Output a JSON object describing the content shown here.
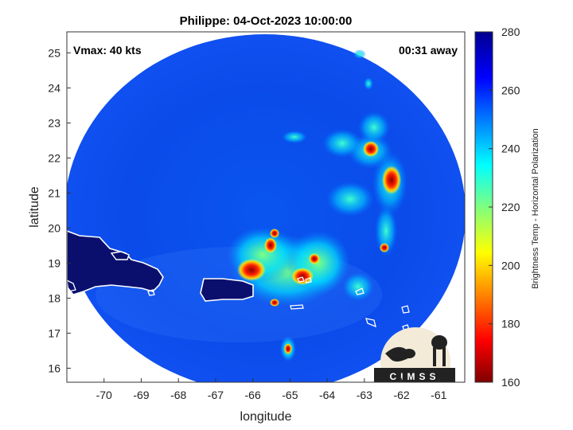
{
  "title": "Philippe: 04-Oct-2023 10:00:00",
  "vmax_label": "Vmax: 40 kts",
  "time_away": "00:31 away",
  "xlabel": "longitude",
  "ylabel": "latitude",
  "colorbar_label": "Brightness Temp - Horizontal Polarization",
  "logo_text": "CIMSS",
  "x_ticks": [
    "-70",
    "-69",
    "-68",
    "-67",
    "-66",
    "-65",
    "-64",
    "-63",
    "-62",
    "-61"
  ],
  "y_ticks": [
    "16",
    "17",
    "18",
    "19",
    "20",
    "21",
    "22",
    "23",
    "24",
    "25"
  ],
  "colorbar_ticks": [
    "280",
    "260",
    "240",
    "220",
    "200",
    "180",
    "160"
  ],
  "colormap": [
    "#7f0000",
    "#ff0000",
    "#ffff00",
    "#00ffff",
    "#0000ff",
    "#00008f"
  ],
  "map_data": {
    "xlim": [
      -71,
      -60.3
    ],
    "ylim": [
      15.6,
      25.6
    ],
    "clim": [
      160,
      280
    ],
    "swath_center": [
      -65.5,
      20.1
    ],
    "storm_center_approx": [
      -65.0,
      19.0
    ]
  }
}
